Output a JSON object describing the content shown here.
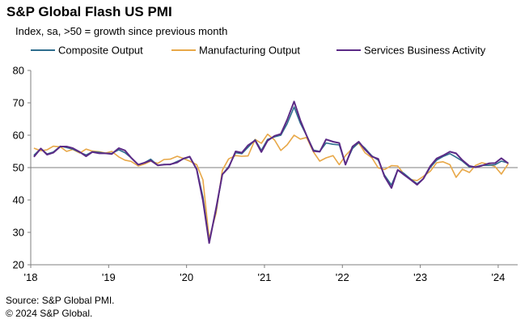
{
  "title": "S&P Global Flash US PMI",
  "subtitle": "Index, sa, >50 = growth since previous month",
  "source_line1": "Source: S&P Global PMI.",
  "source_line2": "© 2024 S&P Global.",
  "chart_data": {
    "type": "line",
    "ylim": [
      20,
      80
    ],
    "yticks": [
      20,
      30,
      40,
      50,
      60,
      70,
      80
    ],
    "xlim": [
      2018.0,
      2024.25
    ],
    "xticks": [
      {
        "x": 2018,
        "label": "'18"
      },
      {
        "x": 2019,
        "label": "'19"
      },
      {
        "x": 2020,
        "label": "'20"
      },
      {
        "x": 2021,
        "label": "'21"
      },
      {
        "x": 2022,
        "label": "'22"
      },
      {
        "x": 2023,
        "label": "'23"
      },
      {
        "x": 2024,
        "label": "'24"
      }
    ],
    "reference_line": 50,
    "grid": false,
    "legend_position": "top",
    "x": [
      2018.04,
      2018.13,
      2018.21,
      2018.29,
      2018.38,
      2018.46,
      2018.54,
      2018.63,
      2018.71,
      2018.79,
      2018.88,
      2018.96,
      2019.04,
      2019.13,
      2019.21,
      2019.29,
      2019.38,
      2019.46,
      2019.54,
      2019.63,
      2019.71,
      2019.79,
      2019.88,
      2019.96,
      2020.04,
      2020.13,
      2020.21,
      2020.29,
      2020.38,
      2020.46,
      2020.54,
      2020.63,
      2020.71,
      2020.79,
      2020.88,
      2020.96,
      2021.04,
      2021.13,
      2021.21,
      2021.29,
      2021.38,
      2021.46,
      2021.54,
      2021.63,
      2021.71,
      2021.79,
      2021.88,
      2021.96,
      2022.04,
      2022.13,
      2022.21,
      2022.29,
      2022.38,
      2022.46,
      2022.54,
      2022.63,
      2022.71,
      2022.79,
      2022.88,
      2022.96,
      2023.04,
      2023.13,
      2023.21,
      2023.29,
      2023.38,
      2023.46,
      2023.54,
      2023.63,
      2023.71,
      2023.79,
      2023.88,
      2023.96,
      2024.04,
      2024.13
    ],
    "series": [
      {
        "name": "Composite Output",
        "color": "#2e6e8e",
        "values": [
          53.8,
          55.9,
          54.2,
          54.8,
          56.6,
          56.2,
          55.7,
          54.7,
          53.9,
          54.9,
          54.7,
          54.4,
          54.4,
          55.5,
          54.6,
          53.0,
          50.9,
          51.5,
          52.6,
          50.7,
          51.0,
          50.9,
          51.9,
          52.7,
          53.3,
          49.6,
          40.9,
          27.0,
          37.0,
          47.9,
          50.3,
          54.6,
          54.3,
          56.3,
          58.6,
          55.3,
          58.7,
          59.5,
          60.0,
          63.5,
          68.7,
          63.7,
          59.9,
          55.4,
          55.0,
          57.6,
          57.2,
          57.0,
          51.1,
          55.9,
          57.7,
          56.0,
          53.6,
          52.3,
          47.7,
          44.6,
          49.3,
          48.2,
          46.4,
          45.0,
          46.6,
          50.1,
          52.3,
          53.4,
          54.3,
          53.2,
          52.0,
          50.2,
          50.2,
          50.7,
          50.7,
          50.9,
          52.0,
          51.4
        ]
      },
      {
        "name": "Manufacturing Output",
        "color": "#e8a848",
        "values": [
          56.0,
          55.2,
          55.5,
          56.6,
          56.4,
          55.0,
          55.6,
          54.5,
          55.7,
          55.1,
          54.9,
          54.5,
          55.0,
          53.3,
          52.3,
          51.9,
          50.5,
          51.1,
          52.0,
          51.3,
          52.5,
          52.6,
          53.5,
          52.8,
          52.0,
          50.9,
          46.2,
          28.0,
          36.0,
          49.2,
          52.7,
          53.7,
          53.5,
          53.6,
          58.7,
          57.5,
          60.3,
          58.5,
          55.3,
          57.0,
          60.0,
          58.8,
          59.3,
          54.8,
          52.0,
          53.0,
          53.7,
          50.9,
          53.7,
          56.0,
          57.6,
          54.6,
          53.0,
          49.9,
          49.4,
          50.6,
          50.5,
          48.0,
          46.3,
          46.0,
          47.3,
          48.9,
          51.5,
          51.8,
          50.9,
          47.0,
          49.5,
          48.5,
          50.7,
          51.5,
          51.0,
          50.3,
          48.0,
          51.2
        ]
      },
      {
        "name": "Services Business Activity",
        "color": "#5b2a86",
        "values": [
          53.3,
          55.9,
          54.0,
          54.6,
          56.5,
          56.5,
          56.0,
          54.8,
          53.5,
          54.8,
          54.4,
          54.4,
          54.2,
          56.0,
          55.3,
          53.0,
          50.9,
          51.5,
          52.2,
          50.7,
          50.9,
          51.0,
          51.6,
          52.8,
          53.4,
          49.4,
          39.8,
          26.7,
          37.5,
          47.9,
          50.0,
          55.0,
          54.6,
          56.9,
          58.4,
          54.8,
          58.3,
          59.8,
          60.4,
          64.7,
          70.4,
          64.6,
          59.9,
          55.1,
          54.9,
          58.7,
          58.0,
          57.6,
          50.9,
          56.5,
          58.0,
          55.6,
          53.4,
          52.7,
          47.3,
          43.7,
          49.3,
          47.8,
          46.2,
          44.7,
          46.6,
          50.5,
          52.8,
          53.7,
          54.9,
          54.4,
          52.3,
          50.5,
          50.1,
          50.6,
          51.3,
          51.4,
          52.9,
          51.3
        ]
      }
    ]
  }
}
